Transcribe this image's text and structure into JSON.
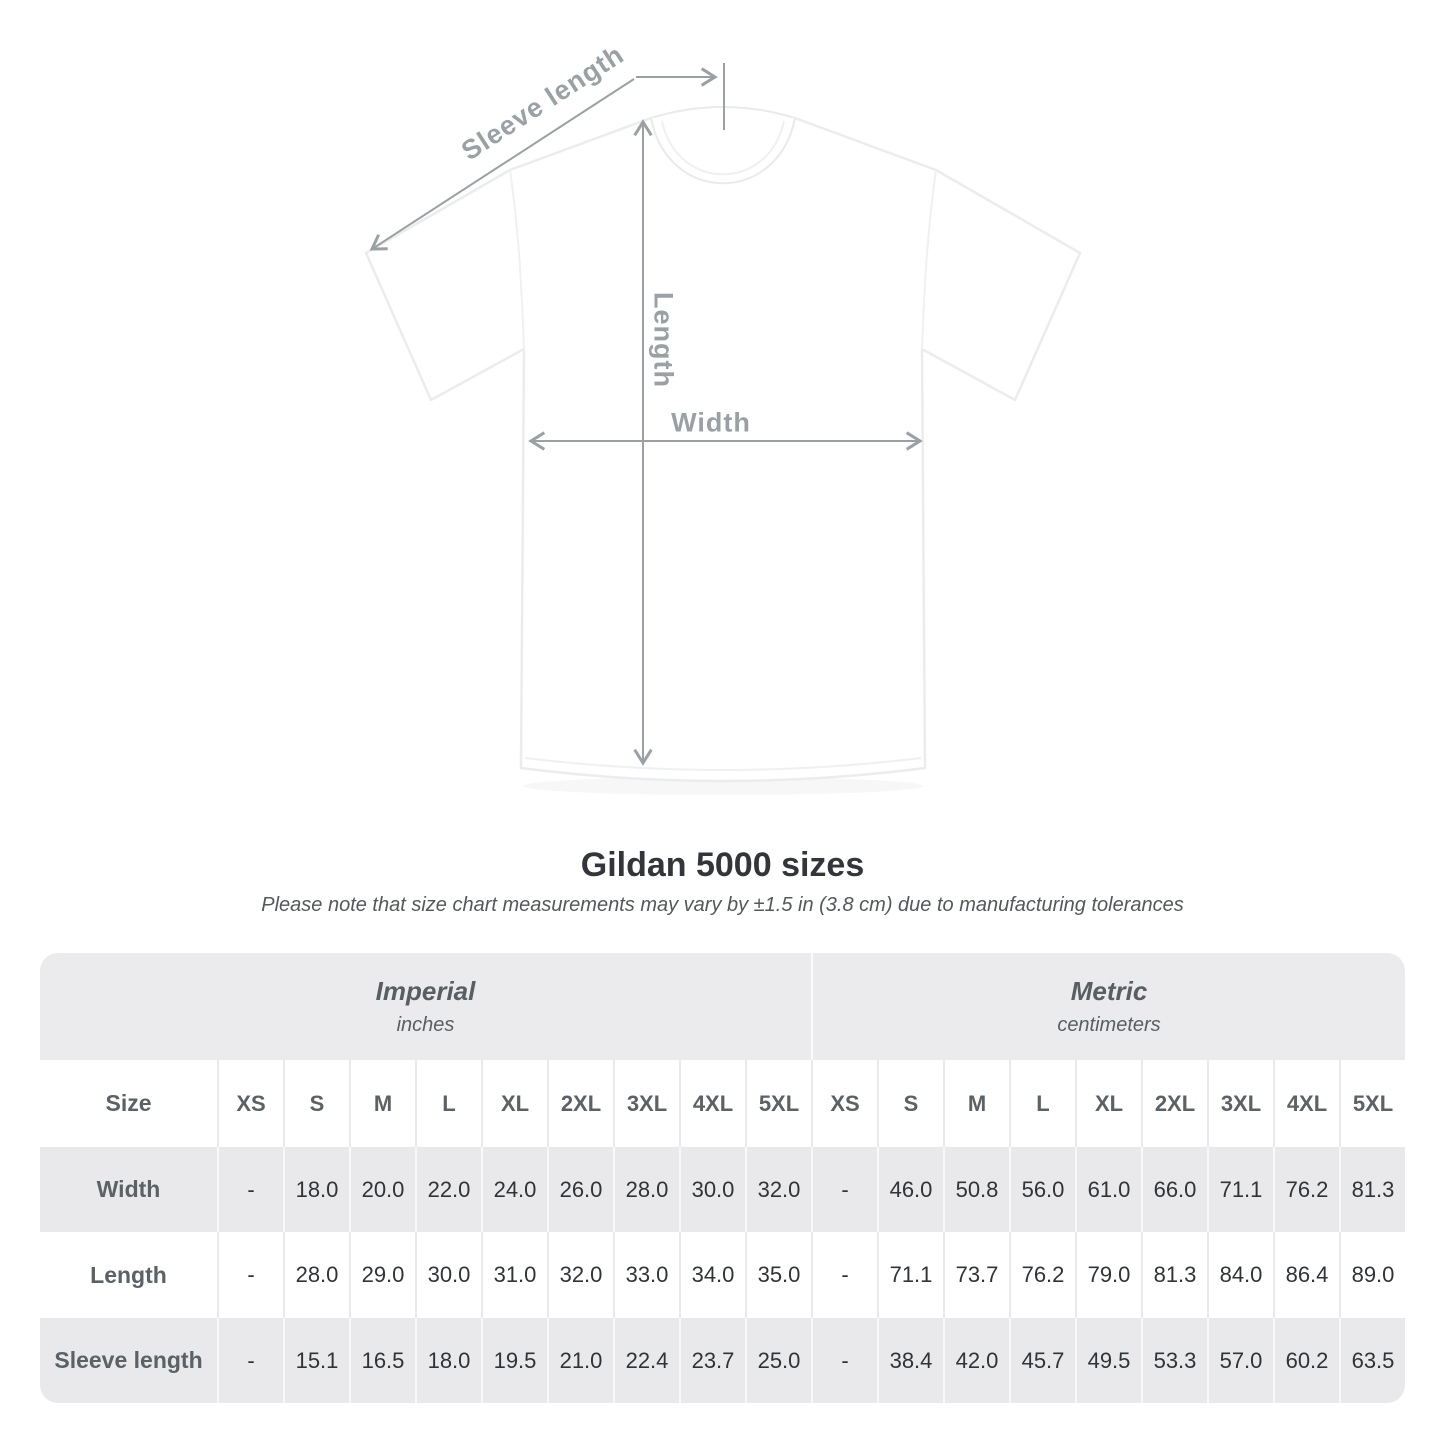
{
  "diagram": {
    "sleeve_label": "Sleeve length",
    "length_label": "Length",
    "width_label": "Width"
  },
  "chart_data": {
    "type": "table",
    "title": "Gildan 5000 sizes",
    "note": "Please note that size chart measurements may vary by ±1.5 in (3.8 cm) due to manufacturing tolerances",
    "size_header": "Size",
    "unit_groups": [
      {
        "label": "Imperial",
        "sublabel": "inches"
      },
      {
        "label": "Metric",
        "sublabel": "centimeters"
      }
    ],
    "sizes": [
      "XS",
      "S",
      "M",
      "L",
      "XL",
      "2XL",
      "3XL",
      "4XL",
      "5XL"
    ],
    "rows": [
      {
        "label": "Width",
        "imperial": [
          "-",
          "18.0",
          "20.0",
          "22.0",
          "24.0",
          "26.0",
          "28.0",
          "30.0",
          "32.0"
        ],
        "metric": [
          "-",
          "46.0",
          "50.8",
          "56.0",
          "61.0",
          "66.0",
          "71.1",
          "76.2",
          "81.3"
        ]
      },
      {
        "label": "Length",
        "imperial": [
          "-",
          "28.0",
          "29.0",
          "30.0",
          "31.0",
          "32.0",
          "33.0",
          "34.0",
          "35.0"
        ],
        "metric": [
          "-",
          "71.1",
          "73.7",
          "76.2",
          "79.0",
          "81.3",
          "84.0",
          "86.4",
          "89.0"
        ]
      },
      {
        "label": "Sleeve length",
        "imperial": [
          "-",
          "15.1",
          "16.5",
          "18.0",
          "19.5",
          "21.0",
          "22.4",
          "23.7",
          "25.0"
        ],
        "metric": [
          "-",
          "38.4",
          "42.0",
          "45.7",
          "49.5",
          "53.3",
          "57.0",
          "60.2",
          "63.5"
        ]
      }
    ]
  },
  "colors": {
    "annotation_gray": "#9aa0a4",
    "band_gray": "#ebebed",
    "zebra_gray": "#e9e9eb",
    "label_gray": "#5c6165",
    "value_dark": "#303437"
  }
}
